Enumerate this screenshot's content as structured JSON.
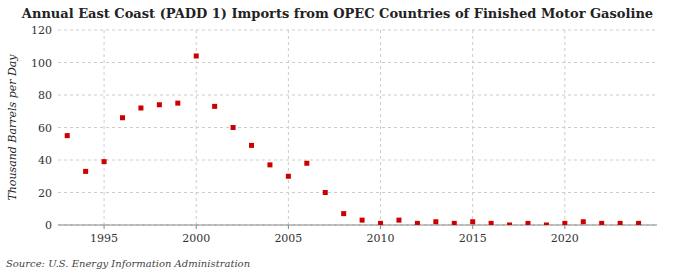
{
  "chart_data": {
    "type": "scatter",
    "title": "Annual East Coast (PADD 1) Imports from OPEC Countries of Finished Motor Gasoline",
    "y_label": "Thousand Barrels per Day",
    "source": "Source: U.S. Energy Information Administration",
    "x": [
      1993,
      1994,
      1995,
      1996,
      1997,
      1998,
      1999,
      2000,
      2001,
      2002,
      2003,
      2004,
      2005,
      2006,
      2007,
      2008,
      2009,
      2010,
      2011,
      2012,
      2013,
      2014,
      2015,
      2016,
      2017,
      2018,
      2019,
      2020,
      2021,
      2022,
      2023,
      2024
    ],
    "values": [
      55,
      33,
      39,
      66,
      72,
      74,
      75,
      104,
      73,
      60,
      49,
      37,
      30,
      38,
      20,
      7,
      3,
      1,
      3,
      1,
      2,
      1,
      2,
      1,
      0,
      1,
      0,
      1,
      2,
      1,
      1,
      1
    ],
    "color": "#cc0000",
    "marker": "square",
    "xlim": [
      1992.5,
      2025
    ],
    "xticks": [
      1995,
      2000,
      2005,
      2010,
      2015,
      2020
    ],
    "ylim": [
      0,
      120
    ],
    "yticks": [
      0,
      20,
      40,
      60,
      80,
      100,
      120
    ],
    "grid": true
  }
}
